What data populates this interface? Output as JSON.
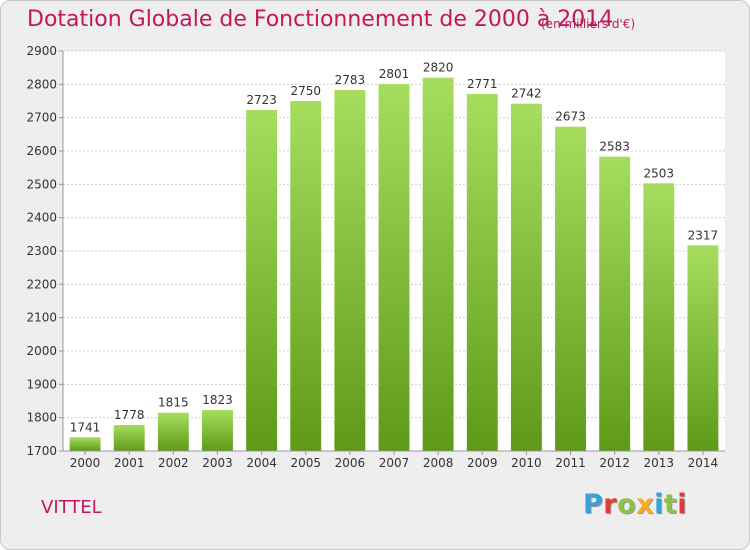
{
  "title": "Dotation Globale de Fonctionnement de 2000 à 2014",
  "unit": "(en milliers d'€)",
  "commune": "VITTEL",
  "logo": {
    "letters": [
      "P",
      "r",
      "o",
      "x",
      "i",
      "t",
      "i"
    ],
    "colors": [
      "#3aa0d8",
      "#e53935",
      "#8bc34a",
      "#f9a825",
      "#3aa0d8",
      "#8bc34a",
      "#e53935"
    ]
  },
  "colors": {
    "bar_top": "#a6dd5f",
    "bar_bottom": "#5e9a17",
    "text": "#333333",
    "grid": "#cccccc",
    "accent": "#c2185b"
  },
  "chart_data": {
    "type": "bar",
    "title": "Dotation Globale de Fonctionnement de 2000 à 2014",
    "xlabel": "",
    "ylabel": "",
    "categories": [
      "2000",
      "2001",
      "2002",
      "2003",
      "2004",
      "2005",
      "2006",
      "2007",
      "2008",
      "2009",
      "2010",
      "2011",
      "2012",
      "2013",
      "2014"
    ],
    "values": [
      1741,
      1778,
      1815,
      1823,
      2723,
      2750,
      2783,
      2801,
      2820,
      2771,
      2742,
      2673,
      2583,
      2503,
      2317
    ],
    "data_labels": [
      "1741",
      "1778",
      "1815",
      "1823",
      "2723",
      "2750",
      "2783",
      "2801",
      "2820",
      "2771",
      "2742",
      "2673",
      "2583",
      "2503",
      "2317"
    ],
    "ylim": [
      1700,
      2900
    ],
    "yticks": [
      1700,
      1800,
      1900,
      2000,
      2100,
      2200,
      2300,
      2400,
      2500,
      2600,
      2700,
      2800,
      2900
    ],
    "grid": true,
    "legend": "none"
  }
}
